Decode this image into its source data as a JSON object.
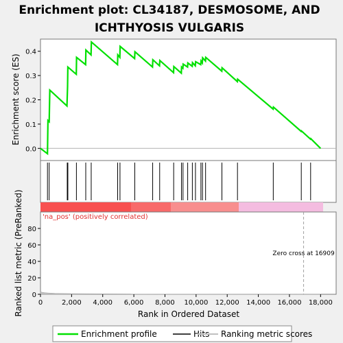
{
  "title_line1": "Enrichment plot: CL34187, DESMOSOME, AND",
  "title_line2": "ICHTHYOSIS VULGARIS",
  "colors": {
    "es_line": "#00e000",
    "hits": "#000000",
    "metric": "#c0c0c0",
    "pos_label": "#e03030",
    "zero_line": "#b0b0b0"
  },
  "chart_data": {
    "type": "line",
    "top_panel": {
      "ylabel": "Enrichment score (ES)",
      "ylim": [
        -0.05,
        0.45
      ],
      "yticks": [
        0.0,
        0.1,
        0.2,
        0.3,
        0.4
      ],
      "ytick_labels": [
        "0.0",
        "0.1",
        "0.2",
        "0.3",
        "0.4"
      ],
      "series": [
        {
          "name": "Enrichment profile",
          "x": [
            0,
            450,
            480,
            560,
            600,
            1700,
            1740,
            1760,
            2300,
            2320,
            2900,
            2920,
            3250,
            3270,
            4950,
            4970,
            5100,
            5120,
            6050,
            6070,
            7200,
            7220,
            7650,
            7670,
            8550,
            8570,
            9050,
            9070,
            9150,
            9170,
            9450,
            9470,
            9750,
            9770,
            9950,
            9970,
            10300,
            10320,
            10400,
            10420,
            10600,
            10620,
            11650,
            11670,
            12650,
            12670,
            14950,
            14970,
            16750,
            16770,
            17350,
            17370,
            18000
          ],
          "y": [
            0.0,
            -0.022,
            0.115,
            0.11,
            0.24,
            0.175,
            0.255,
            0.335,
            0.305,
            0.375,
            0.345,
            0.405,
            0.385,
            0.438,
            0.345,
            0.385,
            0.375,
            0.42,
            0.37,
            0.398,
            0.335,
            0.365,
            0.34,
            0.362,
            0.312,
            0.337,
            0.31,
            0.335,
            0.33,
            0.347,
            0.335,
            0.352,
            0.338,
            0.353,
            0.34,
            0.357,
            0.345,
            0.36,
            0.352,
            0.373,
            0.36,
            0.375,
            0.318,
            0.332,
            0.275,
            0.285,
            0.162,
            0.17,
            0.07,
            0.072,
            0.038,
            0.04,
            0.0
          ]
        }
      ]
    },
    "hits_panel": {
      "x": [
        450,
        560,
        1720,
        1760,
        2310,
        2910,
        3260,
        4960,
        5110,
        6060,
        7210,
        7660,
        8560,
        9060,
        9160,
        9460,
        9760,
        9960,
        10310,
        10410,
        10610,
        11660,
        12660,
        14960,
        16760,
        17360
      ]
    },
    "bottom_panel": {
      "ylabel": "Ranked list metric (PreRanked)",
      "xlabel": "Rank in Ordered Dataset",
      "ylim": [
        0,
        100
      ],
      "yticks": [
        0,
        20,
        40,
        60,
        80
      ],
      "xlim": [
        0,
        19000
      ],
      "xticks": [
        0,
        2000,
        4000,
        6000,
        8000,
        10000,
        12000,
        14000,
        16000,
        18000
      ],
      "xtick_labels": [
        "0",
        "2,000",
        "4,000",
        "6,000",
        "8,000",
        "10,000",
        "12,000",
        "14,000",
        "16,000",
        "18,000"
      ],
      "metric_x": [
        0,
        100,
        200,
        300,
        500,
        800,
        1000,
        2000,
        4000,
        5800,
        5900,
        18000
      ],
      "metric_y": [
        3,
        2.5,
        2.2,
        1.9,
        1.6,
        1.3,
        1.1,
        0.8,
        0.6,
        0.45,
        0.05,
        0.02
      ],
      "pos_label": "'na_pos' (positively correlated)",
      "zero_cross_label": "Zero cross at 16909",
      "zero_cross_x": 16909
    },
    "legend": [
      "Enrichment profile",
      "Hits",
      "Ranking metric scores"
    ]
  }
}
